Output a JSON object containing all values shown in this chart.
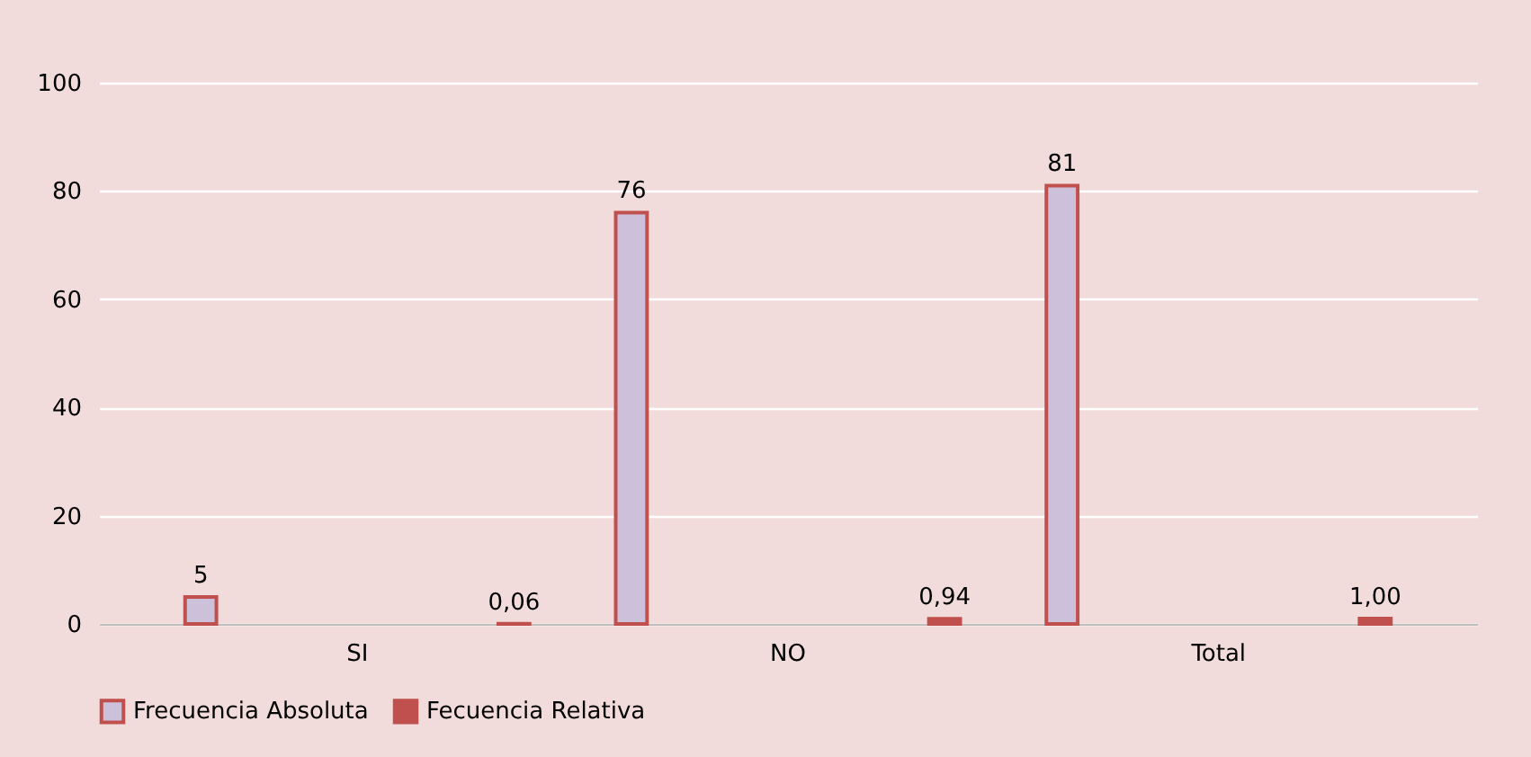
{
  "chart_data": {
    "type": "bar",
    "categories": [
      "SI",
      "NO",
      "Total"
    ],
    "series": [
      {
        "name": "Frecuencia Absoluta",
        "color": "#ccc0da",
        "values": [
          5,
          76,
          81
        ],
        "value_labels": [
          "5",
          "76",
          "81"
        ]
      },
      {
        "name": "Fecuencia Relativa",
        "color": "#c0504d",
        "values": [
          0.06,
          0.94,
          1.0
        ],
        "value_labels": [
          "0,06",
          "0,94",
          "1,00"
        ]
      }
    ],
    "ylim": [
      0,
      100
    ],
    "yticks": [
      0,
      20,
      40,
      60,
      80,
      100
    ],
    "grid": "y",
    "legend": "bottom"
  }
}
